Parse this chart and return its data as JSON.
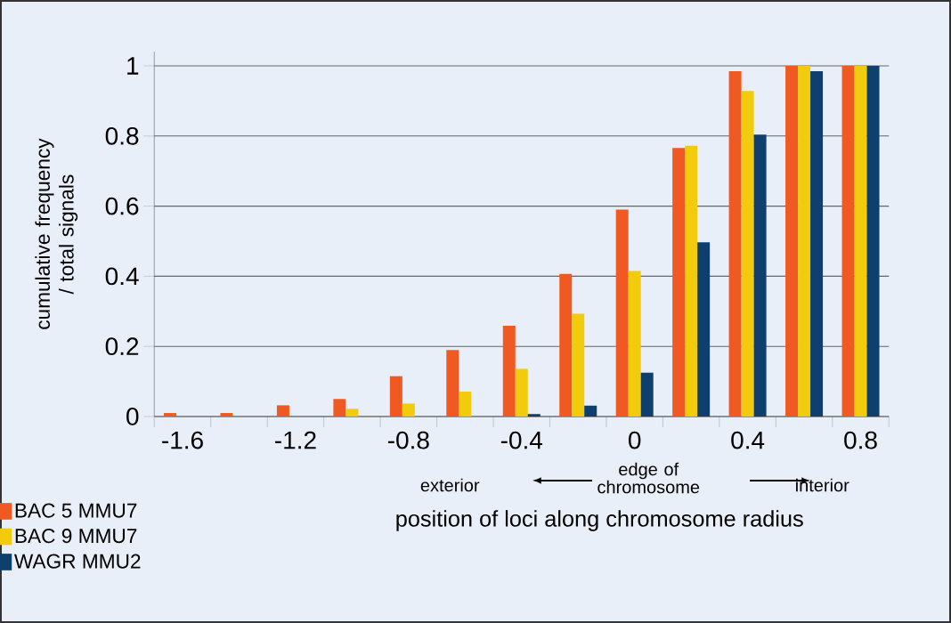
{
  "chart_data": {
    "type": "bar",
    "xlabel": "position of loci along chromosome radius",
    "ylabel": "cumulative frequency / total signals",
    "categories": [
      "-1.6",
      null,
      "-1.2",
      null,
      "-0.8",
      null,
      "-0.4",
      null,
      "0",
      null,
      "0.4",
      null,
      "0.8"
    ],
    "series": [
      {
        "name": "BAC 5 MMU7",
        "color": "#f05a22",
        "values": [
          0.01,
          0.01,
          0.032,
          0.05,
          0.115,
          0.19,
          0.259,
          0.407,
          0.59,
          0.766,
          0.985,
          1,
          1
        ]
      },
      {
        "name": "BAC 9 MMU7",
        "color": "#f2cc0c",
        "values": [
          0,
          0,
          0,
          0.022,
          0.037,
          0.071,
          0.136,
          0.293,
          0.415,
          0.772,
          0.928,
          1,
          1
        ]
      },
      {
        "name": "WAGR MMU2",
        "color": "#0e3f6e",
        "values": [
          0,
          0,
          0,
          0,
          0,
          0,
          0.007,
          0.031,
          0.125,
          0.497,
          0.804,
          0.985,
          1
        ]
      }
    ],
    "ylim": [
      0,
      1.04
    ],
    "yticks": [
      0,
      0.2,
      0.4,
      0.6,
      0.8,
      1
    ],
    "grid": "y",
    "legend": "bottom left",
    "annotations": [
      "exterior",
      "edge of chromosome",
      "interior"
    ]
  }
}
